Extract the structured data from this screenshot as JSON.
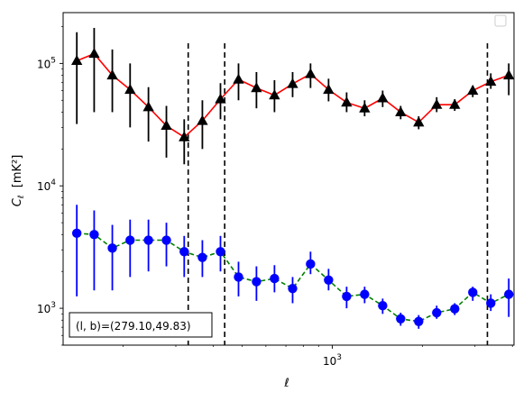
{
  "chart_data": {
    "type": "scatter",
    "xlabel": "ℓ",
    "ylabel_main": "C",
    "ylabel_sub": "ℓ",
    "ylabel_unit": "[mK²]",
    "xscale": "log",
    "yscale": "log",
    "xlim": [
      126,
      4050
    ],
    "ylim": [
      500,
      260000
    ],
    "x_tick_labels": [
      {
        "value": 1000,
        "base": "10",
        "exp": "3"
      }
    ],
    "y_tick_labels": [
      {
        "value": 1000,
        "base": "10",
        "exp": "3"
      },
      {
        "value": 10000,
        "base": "10",
        "exp": "4"
      },
      {
        "value": 100000,
        "base": "10",
        "exp": "5"
      }
    ],
    "annotation": "(l, b)=(279.10,49.83)",
    "vlines": [
      330,
      437,
      3300
    ],
    "legend": "top-right (empty)",
    "grid": false,
    "series": [
      {
        "marker": "triangle",
        "line_color": "#ff0000",
        "line_style": "solid",
        "marker_color": "#000000",
        "errorbar_color": "#000000",
        "points": [
          {
            "x": 140,
            "y": 105000,
            "lo": 32000,
            "hi": 180000
          },
          {
            "x": 160,
            "y": 120000,
            "lo": 40000,
            "hi": 195000
          },
          {
            "x": 184,
            "y": 80000,
            "lo": 40000,
            "hi": 130000
          },
          {
            "x": 211,
            "y": 61000,
            "lo": 30000,
            "hi": 100000
          },
          {
            "x": 243,
            "y": 44000,
            "lo": 23000,
            "hi": 64000
          },
          {
            "x": 279,
            "y": 31000,
            "lo": 17000,
            "hi": 45000
          },
          {
            "x": 320,
            "y": 25000,
            "lo": 15000,
            "hi": 35000
          },
          {
            "x": 368,
            "y": 34000,
            "lo": 20000,
            "hi": 50000
          },
          {
            "x": 423,
            "y": 51000,
            "lo": 35000,
            "hi": 69000
          },
          {
            "x": 486,
            "y": 74000,
            "lo": 50000,
            "hi": 100000
          },
          {
            "x": 558,
            "y": 63000,
            "lo": 43000,
            "hi": 85000
          },
          {
            "x": 641,
            "y": 55000,
            "lo": 40000,
            "hi": 73000
          },
          {
            "x": 737,
            "y": 68000,
            "lo": 53000,
            "hi": 85000
          },
          {
            "x": 846,
            "y": 82000,
            "lo": 63000,
            "hi": 100000
          },
          {
            "x": 972,
            "y": 61000,
            "lo": 49000,
            "hi": 75000
          },
          {
            "x": 1117,
            "y": 48000,
            "lo": 40000,
            "hi": 58000
          },
          {
            "x": 1283,
            "y": 43000,
            "lo": 37000,
            "hi": 50000
          },
          {
            "x": 1474,
            "y": 52000,
            "lo": 44000,
            "hi": 60000
          },
          {
            "x": 1693,
            "y": 40000,
            "lo": 35000,
            "hi": 45000
          },
          {
            "x": 1945,
            "y": 33000,
            "lo": 29000,
            "hi": 37000
          },
          {
            "x": 2234,
            "y": 46000,
            "lo": 40000,
            "hi": 53000
          },
          {
            "x": 2567,
            "y": 46000,
            "lo": 41000,
            "hi": 51000
          },
          {
            "x": 2949,
            "y": 60000,
            "lo": 53000,
            "hi": 66000
          },
          {
            "x": 3388,
            "y": 71000,
            "lo": 62000,
            "hi": 83000
          },
          {
            "x": 3891,
            "y": 80000,
            "lo": 55000,
            "hi": 100000
          }
        ]
      },
      {
        "marker": "circle",
        "line_color": "#008000",
        "line_style": "dashed",
        "marker_color": "#0000ff",
        "errorbar_color": "#0000ff",
        "points": [
          {
            "x": 140,
            "y": 4100,
            "lo": 1250,
            "hi": 7000
          },
          {
            "x": 160,
            "y": 4000,
            "lo": 1400,
            "hi": 6300
          },
          {
            "x": 184,
            "y": 3100,
            "lo": 1400,
            "hi": 4800
          },
          {
            "x": 211,
            "y": 3600,
            "lo": 1800,
            "hi": 5300
          },
          {
            "x": 243,
            "y": 3600,
            "lo": 2000,
            "hi": 5300
          },
          {
            "x": 279,
            "y": 3600,
            "lo": 2200,
            "hi": 5000
          },
          {
            "x": 320,
            "y": 2900,
            "lo": 1800,
            "hi": 3900
          },
          {
            "x": 368,
            "y": 2600,
            "lo": 1800,
            "hi": 3600
          },
          {
            "x": 423,
            "y": 2900,
            "lo": 2000,
            "hi": 3900
          },
          {
            "x": 486,
            "y": 1800,
            "lo": 1250,
            "hi": 2400
          },
          {
            "x": 558,
            "y": 1650,
            "lo": 1150,
            "hi": 2200
          },
          {
            "x": 641,
            "y": 1750,
            "lo": 1350,
            "hi": 2250
          },
          {
            "x": 737,
            "y": 1450,
            "lo": 1100,
            "hi": 1800
          },
          {
            "x": 846,
            "y": 2300,
            "lo": 1900,
            "hi": 2900
          },
          {
            "x": 972,
            "y": 1700,
            "lo": 1400,
            "hi": 2100
          },
          {
            "x": 1117,
            "y": 1250,
            "lo": 1000,
            "hi": 1500
          },
          {
            "x": 1283,
            "y": 1300,
            "lo": 1100,
            "hi": 1500
          },
          {
            "x": 1474,
            "y": 1050,
            "lo": 900,
            "hi": 1200
          },
          {
            "x": 1693,
            "y": 820,
            "lo": 720,
            "hi": 920
          },
          {
            "x": 1945,
            "y": 780,
            "lo": 680,
            "hi": 880
          },
          {
            "x": 2234,
            "y": 920,
            "lo": 820,
            "hi": 1050
          },
          {
            "x": 2567,
            "y": 990,
            "lo": 880,
            "hi": 1100
          },
          {
            "x": 2949,
            "y": 1350,
            "lo": 1150,
            "hi": 1500
          },
          {
            "x": 3388,
            "y": 1100,
            "lo": 950,
            "hi": 1300
          },
          {
            "x": 3891,
            "y": 1300,
            "lo": 850,
            "hi": 1750
          }
        ]
      }
    ]
  }
}
